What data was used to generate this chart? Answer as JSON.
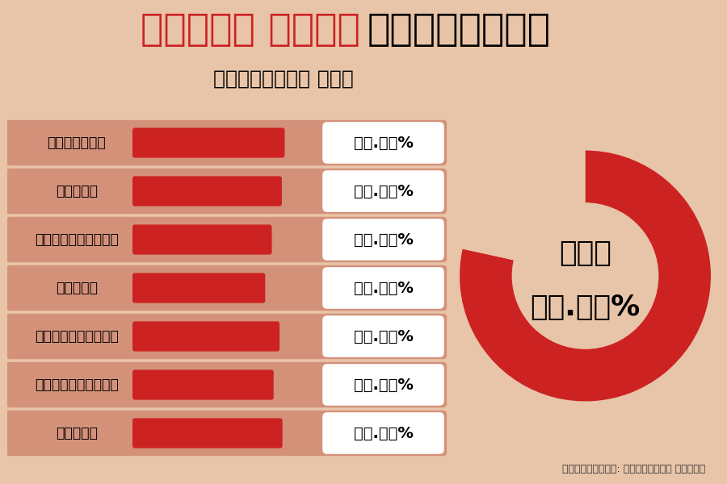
{
  "title_red": "পঞ্চম দফার",
  "title_black": "নির্বাচন",
  "subtitle": "ভোটদানের হার",
  "categories": [
    "আরামবাগ",
    "বনগাঁ",
    "ব্যারাকপুর",
    "হাওড়া",
    "উলুবেড়িয়া",
    "শ্রীরামপুর",
    "হুগলি"
  ],
  "values": [
    82.62,
    81.04,
    75.43,
    71.73,
    79.78,
    76.44,
    81.38
  ],
  "value_labels": [
    "৮২.৬২%",
    "৮১.০৪%",
    "৭৫.৪৩%",
    "৭১.৭৩%",
    "৭৯.৭৮%",
    "৭৬.৪৪%",
    "৮১.৩৮%"
  ],
  "total_pct": "৭৮.৪৫%",
  "total_label": "মোট",
  "source_label": "তথ্যসূত্র: নির্বাচন কমিশন",
  "bg_color": "#e8c4a8",
  "bar_bg_color": "#d4917a",
  "bar_color": "#cc2222",
  "donut_color": "#cc2222",
  "label_bg_color": "#ffffff",
  "total_value": 78.45,
  "max_value": 100
}
